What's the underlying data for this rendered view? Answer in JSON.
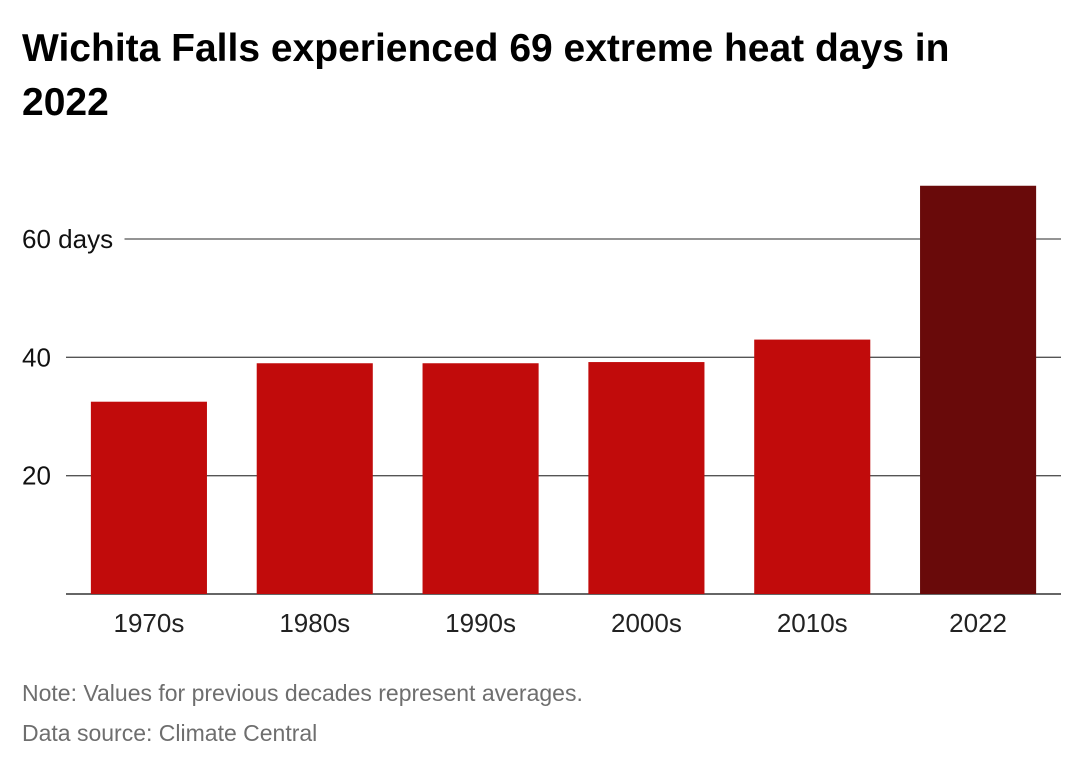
{
  "chart_data": {
    "type": "bar",
    "title": "Wichita Falls experienced 69 extreme heat days in 2022",
    "categories": [
      "1970s",
      "1980s",
      "1990s",
      "2000s",
      "2010s",
      "2022"
    ],
    "values": [
      32.5,
      39,
      39,
      39.2,
      43,
      69
    ],
    "ylim": [
      0,
      72
    ],
    "yticks": [
      20,
      40,
      60
    ],
    "ytick_labels": [
      "20",
      "40",
      "60 days"
    ],
    "xlabel": "",
    "ylabel": "",
    "grid": true,
    "colors": {
      "bar": "#c10b0b",
      "highlight": "#690a0a",
      "grid": "#555555",
      "axis": "#333333"
    },
    "highlight_index": 5
  },
  "footer": {
    "note": "Note: Values for previous decades represent averages.",
    "source": "Data source: Climate Central"
  }
}
